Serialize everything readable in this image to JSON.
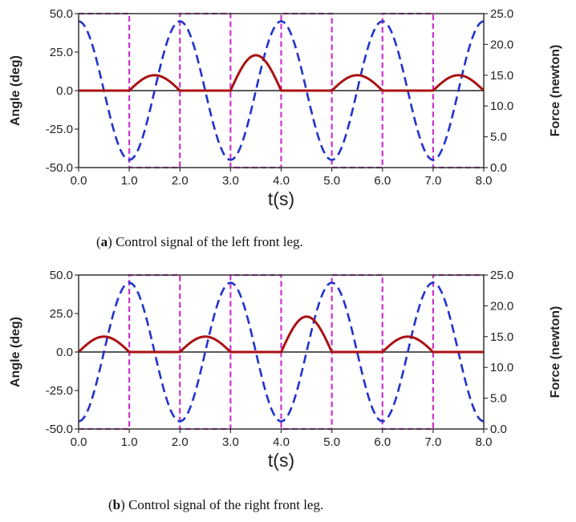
{
  "chart_data": [
    {
      "type": "line",
      "caption": {
        "letter": "a",
        "text": "Control signal of the left front leg."
      },
      "xlabel": "t(s)",
      "ylabel_left": "Angle (deg)",
      "ylabel_right": "Force (newton)",
      "xlim": [
        0,
        8
      ],
      "ylim_left": [
        -50,
        50
      ],
      "ylim_right": [
        0,
        25
      ],
      "x_ticks": [
        "0.0",
        "1.0",
        "2.0",
        "3.0",
        "4.0",
        "5.0",
        "6.0",
        "7.0",
        "8.0"
      ],
      "y_left_ticks": [
        "50.0",
        "25.0",
        "0.0",
        "-25.0",
        "-50.0"
      ],
      "y_right_ticks": [
        "25.0",
        "20.0",
        "15.0",
        "10.0",
        "5.0",
        "0.0"
      ],
      "series": [
        {
          "style": "dashed",
          "color": "#2233cc",
          "axis": "left",
          "phase": 0,
          "x": [
            0,
            0.5,
            1,
            1.5,
            2,
            2.5,
            3,
            3.5,
            4,
            4.5,
            5,
            5.5,
            6,
            6.5,
            7,
            7.5,
            8
          ],
          "y": [
            45,
            0,
            -45,
            0,
            45,
            0,
            -45,
            0,
            45,
            0,
            -45,
            0,
            45,
            0,
            -45,
            0,
            45
          ]
        },
        {
          "style": "dashed",
          "color": "#cc33cc",
          "axis": "left",
          "kind": "square",
          "high_intervals": [
            [
              0,
              1
            ],
            [
              2,
              3
            ],
            [
              4,
              5
            ],
            [
              6,
              7
            ]
          ],
          "high": 50,
          "low": -50
        },
        {
          "style": "solid",
          "color": "#aa1111",
          "axis": "left",
          "kind": "humps",
          "humps": [
            [
              1,
              2,
              10
            ],
            [
              3,
              4,
              23
            ],
            [
              5,
              6,
              10
            ],
            [
              7,
              8,
              10
            ]
          ]
        }
      ]
    },
    {
      "type": "line",
      "caption": {
        "letter": "b",
        "text": "Control signal of the right front leg."
      },
      "xlabel": "t(s)",
      "ylabel_left": "Angle (deg)",
      "ylabel_right": "Force (newton)",
      "xlim": [
        0,
        8
      ],
      "ylim_left": [
        -50,
        50
      ],
      "ylim_right": [
        0,
        25
      ],
      "x_ticks": [
        "0.0",
        "1.0",
        "2.0",
        "3.0",
        "4.0",
        "5.0",
        "6.0",
        "7.0",
        "8.0"
      ],
      "y_left_ticks": [
        "50.0",
        "25.0",
        "0.0",
        "-25.0",
        "-50.0"
      ],
      "y_right_ticks": [
        "25.0",
        "20.0",
        "15.0",
        "10.0",
        "5.0",
        "0.0"
      ],
      "series": [
        {
          "style": "dashed",
          "color": "#2233cc",
          "axis": "left",
          "phase": 1,
          "x": [
            0,
            0.5,
            1,
            1.5,
            2,
            2.5,
            3,
            3.5,
            4,
            4.5,
            5,
            5.5,
            6,
            6.5,
            7,
            7.5,
            8
          ],
          "y": [
            -45,
            0,
            45,
            0,
            -45,
            0,
            45,
            0,
            -45,
            0,
            45,
            0,
            -45,
            0,
            45,
            0,
            -45
          ]
        },
        {
          "style": "dashed",
          "color": "#cc33cc",
          "axis": "left",
          "kind": "square",
          "high_intervals": [
            [
              1,
              2
            ],
            [
              3,
              4
            ],
            [
              5,
              6
            ],
            [
              7,
              8
            ]
          ],
          "high": 50,
          "low": -50
        },
        {
          "style": "solid",
          "color": "#aa1111",
          "axis": "left",
          "kind": "humps",
          "humps": [
            [
              0,
              1,
              10
            ],
            [
              2,
              3,
              10
            ],
            [
              4,
              5,
              23
            ],
            [
              6,
              7,
              10
            ]
          ]
        }
      ]
    }
  ]
}
